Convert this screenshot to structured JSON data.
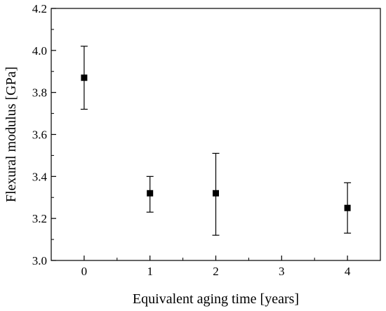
{
  "chart_data": {
    "type": "scatter",
    "title": "",
    "xlabel": "Equivalent aging time [years]",
    "ylabel": "Flexural modulus [GPa]",
    "xlim": [
      -0.5,
      4.5
    ],
    "ylim": [
      3.0,
      4.2
    ],
    "x_ticks": [
      0,
      1,
      2,
      3,
      4
    ],
    "x_tick_labels": [
      "0",
      "1",
      "2",
      "3",
      "4"
    ],
    "y_ticks": [
      3.0,
      3.2,
      3.4,
      3.6,
      3.8,
      4.0,
      4.2
    ],
    "y_tick_labels": [
      "3.0",
      "3.2",
      "3.4",
      "3.6",
      "3.8",
      "4.0",
      "4.2"
    ],
    "grid": false,
    "legend": "none",
    "marker": "square",
    "color": "#000000",
    "points": [
      {
        "x": 0,
        "y": 3.87,
        "err_low": 3.72,
        "err_high": 4.02
      },
      {
        "x": 1,
        "y": 3.32,
        "err_low": 3.23,
        "err_high": 3.4
      },
      {
        "x": 2,
        "y": 3.32,
        "err_low": 3.12,
        "err_high": 3.51
      },
      {
        "x": 4,
        "y": 3.25,
        "err_low": 3.13,
        "err_high": 3.37
      }
    ]
  }
}
